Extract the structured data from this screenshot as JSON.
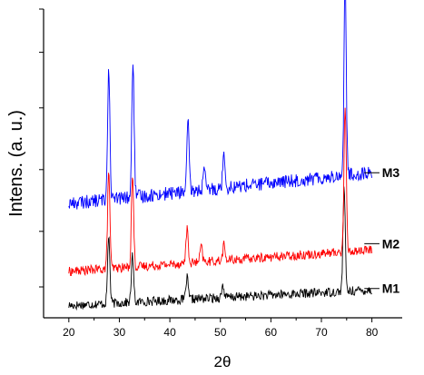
{
  "chart_data": {
    "type": "line",
    "xlabel": "2θ",
    "ylabel": "Intens. (a. u.)",
    "xlim": [
      15,
      86
    ],
    "ylim": [
      0,
      100
    ],
    "x_ticks": [
      "20",
      "30",
      "40",
      "50",
      "60",
      "70",
      "80"
    ],
    "y_ticks": [
      10,
      28,
      48,
      68,
      86,
      100
    ],
    "x_range": [
      20,
      80
    ],
    "series": [
      {
        "name": "M1",
        "color": "#000000",
        "baseline_start": 4,
        "baseline_end": 9,
        "noise": 1.5,
        "label_y": 9.5,
        "peaks": [
          {
            "x": 27.9,
            "height": 22
          },
          {
            "x": 32.6,
            "height": 15
          },
          {
            "x": 43.4,
            "height": 7
          },
          {
            "x": 50.5,
            "height": 4
          },
          {
            "x": 74.5,
            "height": 34
          }
        ]
      },
      {
        "name": "M2",
        "color": "#ff0000",
        "baseline_start": 15,
        "baseline_end": 22,
        "noise": 1.5,
        "label_y": 24,
        "peaks": [
          {
            "x": 27.9,
            "height": 32
          },
          {
            "x": 32.6,
            "height": 30
          },
          {
            "x": 43.4,
            "height": 11
          },
          {
            "x": 46.2,
            "height": 5
          },
          {
            "x": 50.7,
            "height": 5
          },
          {
            "x": 74.7,
            "height": 48
          }
        ]
      },
      {
        "name": "M3",
        "color": "#0000ff",
        "baseline_start": 37,
        "baseline_end": 47,
        "noise": 2.2,
        "label_y": 47,
        "peaks": [
          {
            "x": 27.9,
            "height": 43
          },
          {
            "x": 32.7,
            "height": 44
          },
          {
            "x": 43.6,
            "height": 22
          },
          {
            "x": 46.8,
            "height": 6
          },
          {
            "x": 50.7,
            "height": 12
          },
          {
            "x": 74.7,
            "height": 63
          }
        ]
      }
    ],
    "grid": false,
    "legend": "none"
  }
}
